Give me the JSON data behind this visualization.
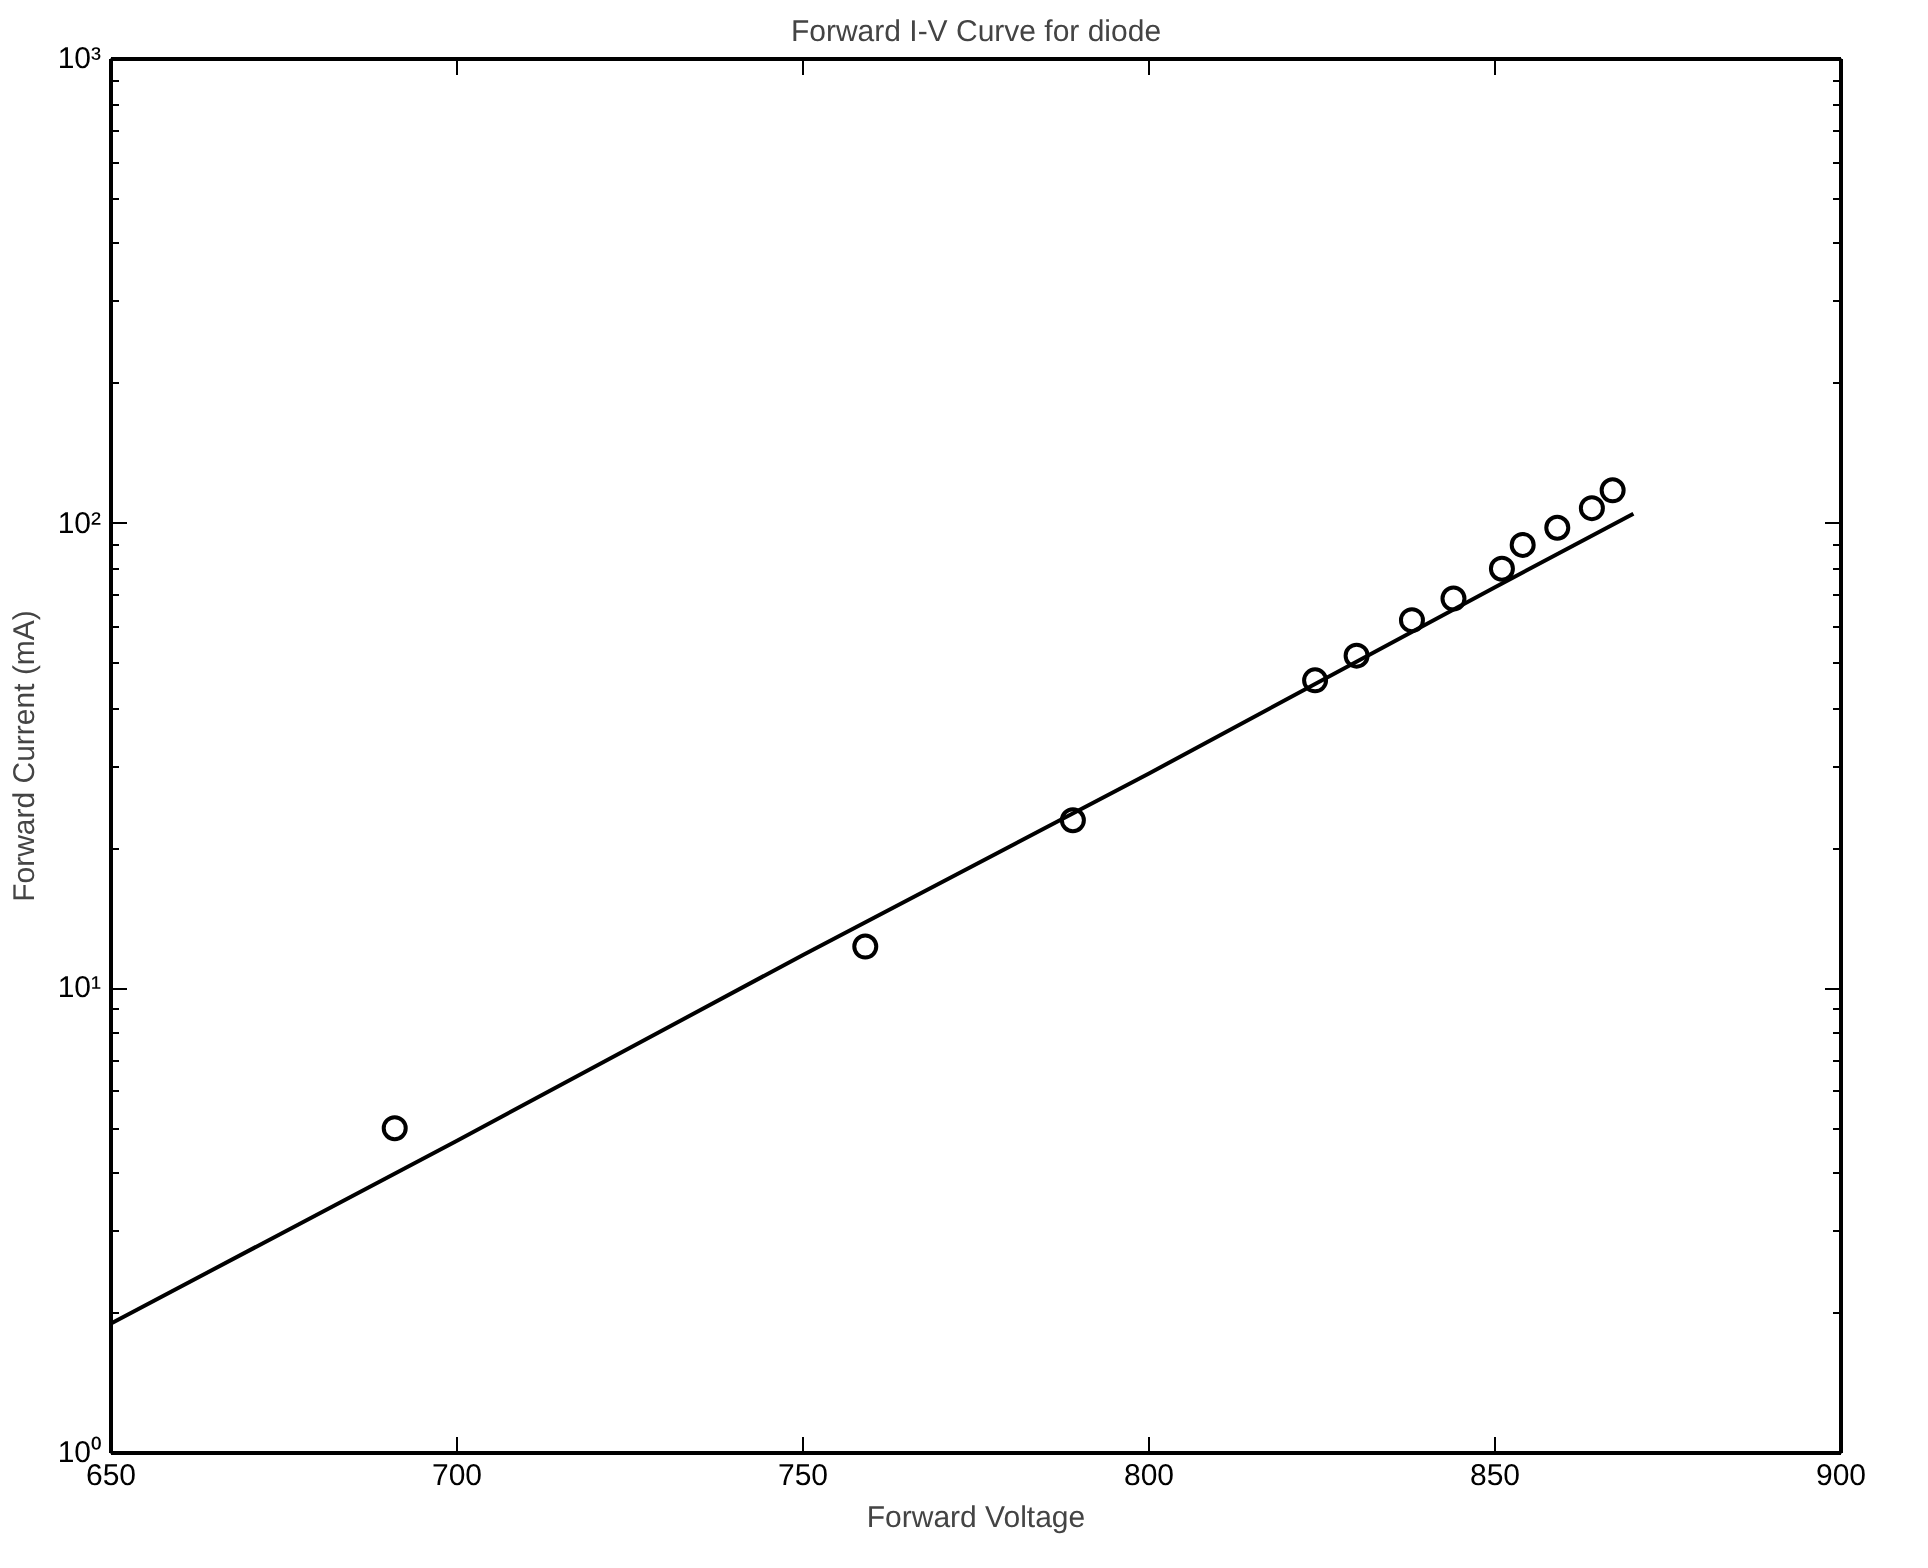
{
  "chart_data": {
    "type": "scatter",
    "title": "Forward I-V Curve for diode",
    "xlabel": "Forward Voltage",
    "ylabel": "Forward Current (mA)",
    "series": [
      {
        "color": "#000000",
        "marker": "circle",
        "x": [
          691,
          759,
          789,
          824,
          830,
          838,
          844,
          851,
          854,
          859,
          864,
          867
        ],
        "values": [
          5.0,
          12.3,
          23,
          46,
          52,
          62,
          69,
          80,
          90,
          98,
          108,
          118
        ]
      },
      {
        "type": "line",
        "color": "#000000",
        "x": [
          650,
          700,
          750,
          800,
          850,
          870
        ],
        "values": [
          1.9,
          4.7,
          11.8,
          29,
          73,
          105
        ]
      }
    ],
    "xlim": [
      650,
      900
    ],
    "xticks": [
      650,
      700,
      750,
      800,
      850,
      900
    ],
    "ylim": [
      1,
      1000
    ],
    "yticks": [
      {
        "value": 1,
        "label": "10⁰"
      },
      {
        "value": 10,
        "label": "10¹"
      },
      {
        "value": 100,
        "label": "10²"
      },
      {
        "value": 1000,
        "label": "10³"
      }
    ],
    "log": "y",
    "grid": false
  }
}
